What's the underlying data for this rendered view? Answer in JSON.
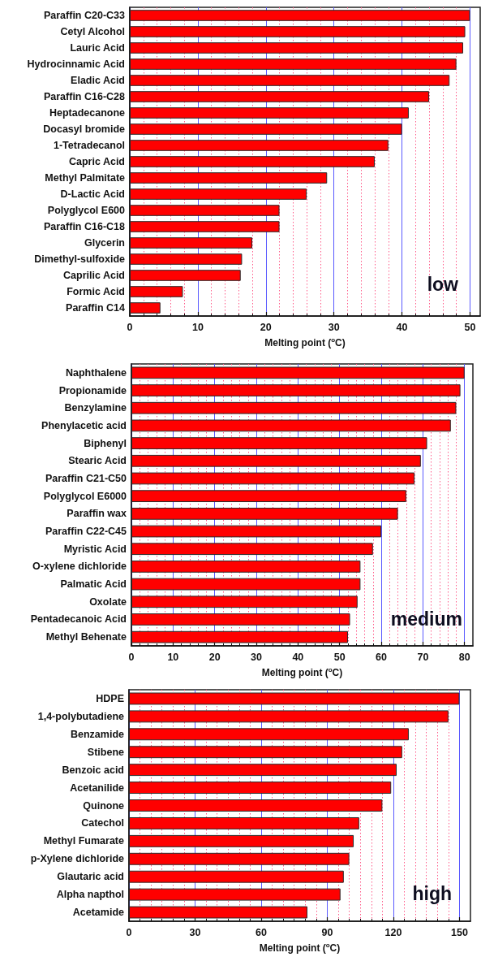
{
  "chart_data": [
    {
      "type": "bar",
      "orientation": "horizontal",
      "color": "#ff0000",
      "xlabel": "Melting point ($^{o}$C)",
      "grid": "x",
      "annotations": [
        "low"
      ],
      "categories": [
        "Paraffin C20-C33",
        "Cetyl Alcohol",
        "Lauric Acid",
        "Hydrocinnamic Acid",
        "Eladic Acid",
        "Paraffin C16-C28",
        "Heptadecanone",
        "Docasyl bromide",
        "1-Tetradecanol",
        "Capric Acid",
        "Methyl Palmitate",
        "D-Lactic Acid",
        "Polyglycol E600",
        "Paraffin C16-C18",
        "Glycerin",
        "Dimethyl-sulfoxide",
        "Caprilic Acid",
        "Formic Acid",
        "Paraffin C14"
      ],
      "values": [
        50,
        49.3,
        49,
        48,
        47,
        44,
        41,
        40,
        38,
        36,
        29,
        26,
        22,
        22,
        18,
        16.5,
        16.3,
        7.8,
        4.5
      ],
      "xlim": [
        0,
        51.5
      ],
      "xticks": [
        0,
        {
          "value": 2,
          "label": null
        },
        {
          "value": 4,
          "label": null
        },
        {
          "value": 6,
          "label": null
        },
        {
          "value": 8,
          "label": null
        },
        10,
        {
          "value": 12,
          "label": null
        },
        {
          "value": 14,
          "label": null
        },
        {
          "value": 16,
          "label": null
        },
        {
          "value": 18,
          "label": null
        },
        20,
        {
          "value": 22,
          "label": null
        },
        {
          "value": 24,
          "label": null
        },
        {
          "value": 26,
          "label": null
        },
        {
          "value": 28,
          "label": null
        },
        30,
        {
          "value": 32,
          "label": null
        },
        {
          "value": 34,
          "label": null
        },
        {
          "value": 36,
          "label": null
        },
        {
          "value": 38,
          "label": null
        },
        40,
        {
          "value": 42,
          "label": null
        },
        {
          "value": 44,
          "label": null
        },
        {
          "value": 46,
          "label": null
        },
        {
          "value": 48,
          "label": null
        },
        50
      ]
    },
    {
      "type": "bar",
      "orientation": "horizontal",
      "color": "#ff0000",
      "xlabel": "Melting point ($^{o}$C)",
      "grid": "x",
      "annotations": [
        "medium"
      ],
      "categories": [
        "Naphthalene",
        "Propionamide",
        "Benzylamine",
        "Phenylacetic acid",
        "Biphenyl",
        "Stearic Acid",
        "Paraffin C21-C50",
        "Polyglycol E6000",
        "Paraffin wax",
        "Paraffin C22-C45",
        "Myristic Acid",
        "O-xylene dichloride",
        "Palmatic Acid",
        "Oxolate",
        "Pentadecanoic Acid",
        "Methyl Behenate"
      ],
      "values": [
        80,
        79,
        78,
        76.7,
        71,
        69.5,
        68,
        66,
        64,
        60,
        58,
        55,
        55,
        54.3,
        52.5,
        52
      ],
      "xlim": [
        0,
        82
      ],
      "xticks": [
        0,
        {
          "value": 2,
          "label": null
        },
        {
          "value": 4,
          "label": null
        },
        {
          "value": 6,
          "label": null
        },
        {
          "value": 8,
          "label": null
        },
        10,
        {
          "value": 12,
          "label": null
        },
        {
          "value": 14,
          "label": null
        },
        {
          "value": 16,
          "label": null
        },
        {
          "value": 18,
          "label": null
        },
        20,
        {
          "value": 22,
          "label": null
        },
        {
          "value": 24,
          "label": null
        },
        {
          "value": 26,
          "label": null
        },
        {
          "value": 28,
          "label": null
        },
        30,
        {
          "value": 32,
          "label": null
        },
        {
          "value": 34,
          "label": null
        },
        {
          "value": 36,
          "label": null
        },
        {
          "value": 38,
          "label": null
        },
        40,
        {
          "value": 42,
          "label": null
        },
        {
          "value": 44,
          "label": null
        },
        {
          "value": 46,
          "label": null
        },
        {
          "value": 48,
          "label": null
        },
        50,
        {
          "value": 52,
          "label": null
        },
        {
          "value": 54,
          "label": null
        },
        {
          "value": 56,
          "label": null
        },
        {
          "value": 58,
          "label": null
        },
        60,
        {
          "value": 62,
          "label": null
        },
        {
          "value": 64,
          "label": null
        },
        {
          "value": 66,
          "label": null
        },
        {
          "value": 68,
          "label": null
        },
        70,
        {
          "value": 72,
          "label": null
        },
        {
          "value": 74,
          "label": null
        },
        {
          "value": 76,
          "label": null
        },
        {
          "value": 78,
          "label": null
        },
        80
      ]
    },
    {
      "type": "bar",
      "orientation": "horizontal",
      "color": "#ff0000",
      "xlabel": "Melting point ($^{o}$C)",
      "grid": "x",
      "annotations": [
        "high"
      ],
      "categories": [
        "HDPE",
        "1,4-polybutadiene",
        "Benzamide",
        "Stibene",
        "Benzoic acid",
        "Acetanilide",
        "Quinone",
        "Catechol",
        "Methyl Fumarate",
        "p-Xylene dichloride",
        "Glautaric acid",
        "Alpha napthol",
        "Acetamide"
      ],
      "values": [
        150,
        145,
        127,
        124,
        121.5,
        119,
        115,
        104.5,
        102,
        100,
        97.5,
        96,
        81
      ],
      "xlim": [
        0,
        155
      ],
      "xticks": [
        0,
        {
          "value": 5,
          "label": null
        },
        {
          "value": 10,
          "label": null
        },
        {
          "value": 15,
          "label": null
        },
        {
          "value": 20,
          "label": null
        },
        {
          "value": 25,
          "label": null
        },
        30,
        {
          "value": 35,
          "label": null
        },
        {
          "value": 40,
          "label": null
        },
        {
          "value": 45,
          "label": null
        },
        {
          "value": 50,
          "label": null
        },
        {
          "value": 55,
          "label": null
        },
        60,
        {
          "value": 65,
          "label": null
        },
        {
          "value": 70,
          "label": null
        },
        {
          "value": 75,
          "label": null
        },
        {
          "value": 80,
          "label": null
        },
        {
          "value": 85,
          "label": null
        },
        90,
        {
          "value": 95,
          "label": null
        },
        {
          "value": 100,
          "label": null
        },
        {
          "value": 105,
          "label": null
        },
        {
          "value": 110,
          "label": null
        },
        {
          "value": 115,
          "label": null
        },
        120,
        {
          "value": 125,
          "label": null
        },
        {
          "value": 130,
          "label": null
        },
        {
          "value": 135,
          "label": null
        },
        {
          "value": 140,
          "label": null
        },
        {
          "value": 145,
          "label": null
        },
        150
      ]
    }
  ]
}
